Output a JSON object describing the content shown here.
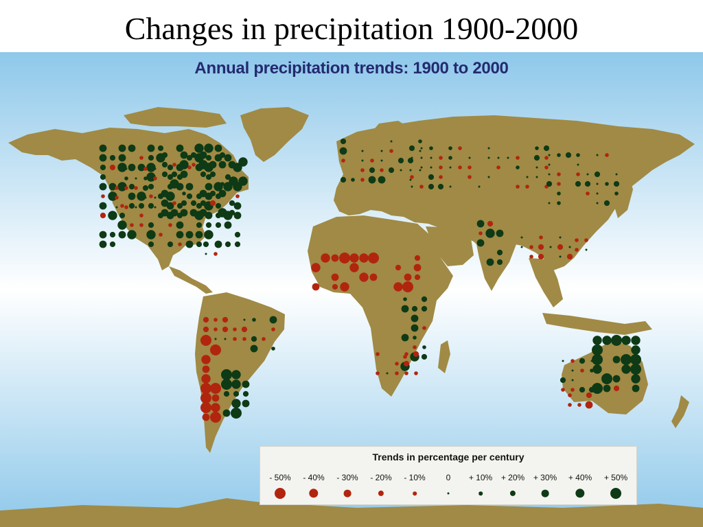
{
  "slide": {
    "title": "Changes in precipitation 1900-2000"
  },
  "map": {
    "title": "Annual precipitation trends: 1900 to 2000",
    "colors": {
      "ocean_top": "#8ec8ea",
      "ocean_mid": "#ffffff",
      "ocean_bottom": "#8ec8ea",
      "land": "#a08a45",
      "increase": "#0e3a16",
      "decrease": "#b1250f"
    }
  },
  "legend": {
    "title": "Trends in percentage per century",
    "items": [
      {
        "label": "- 50%",
        "trend": -50
      },
      {
        "label": "- 40%",
        "trend": -40
      },
      {
        "label": "- 30%",
        "trend": -30
      },
      {
        "label": "- 20%",
        "trend": -20
      },
      {
        "label": "- 10%",
        "trend": -10
      },
      {
        "label": "0",
        "trend": 0
      },
      {
        "label": "+ 10%",
        "trend": 10
      },
      {
        "label": "+ 20%",
        "trend": 20
      },
      {
        "label": "+ 30%",
        "trend": 30
      },
      {
        "label": "+ 40%",
        "trend": 40
      },
      {
        "label": "+ 50%",
        "trend": 50
      }
    ]
  }
}
